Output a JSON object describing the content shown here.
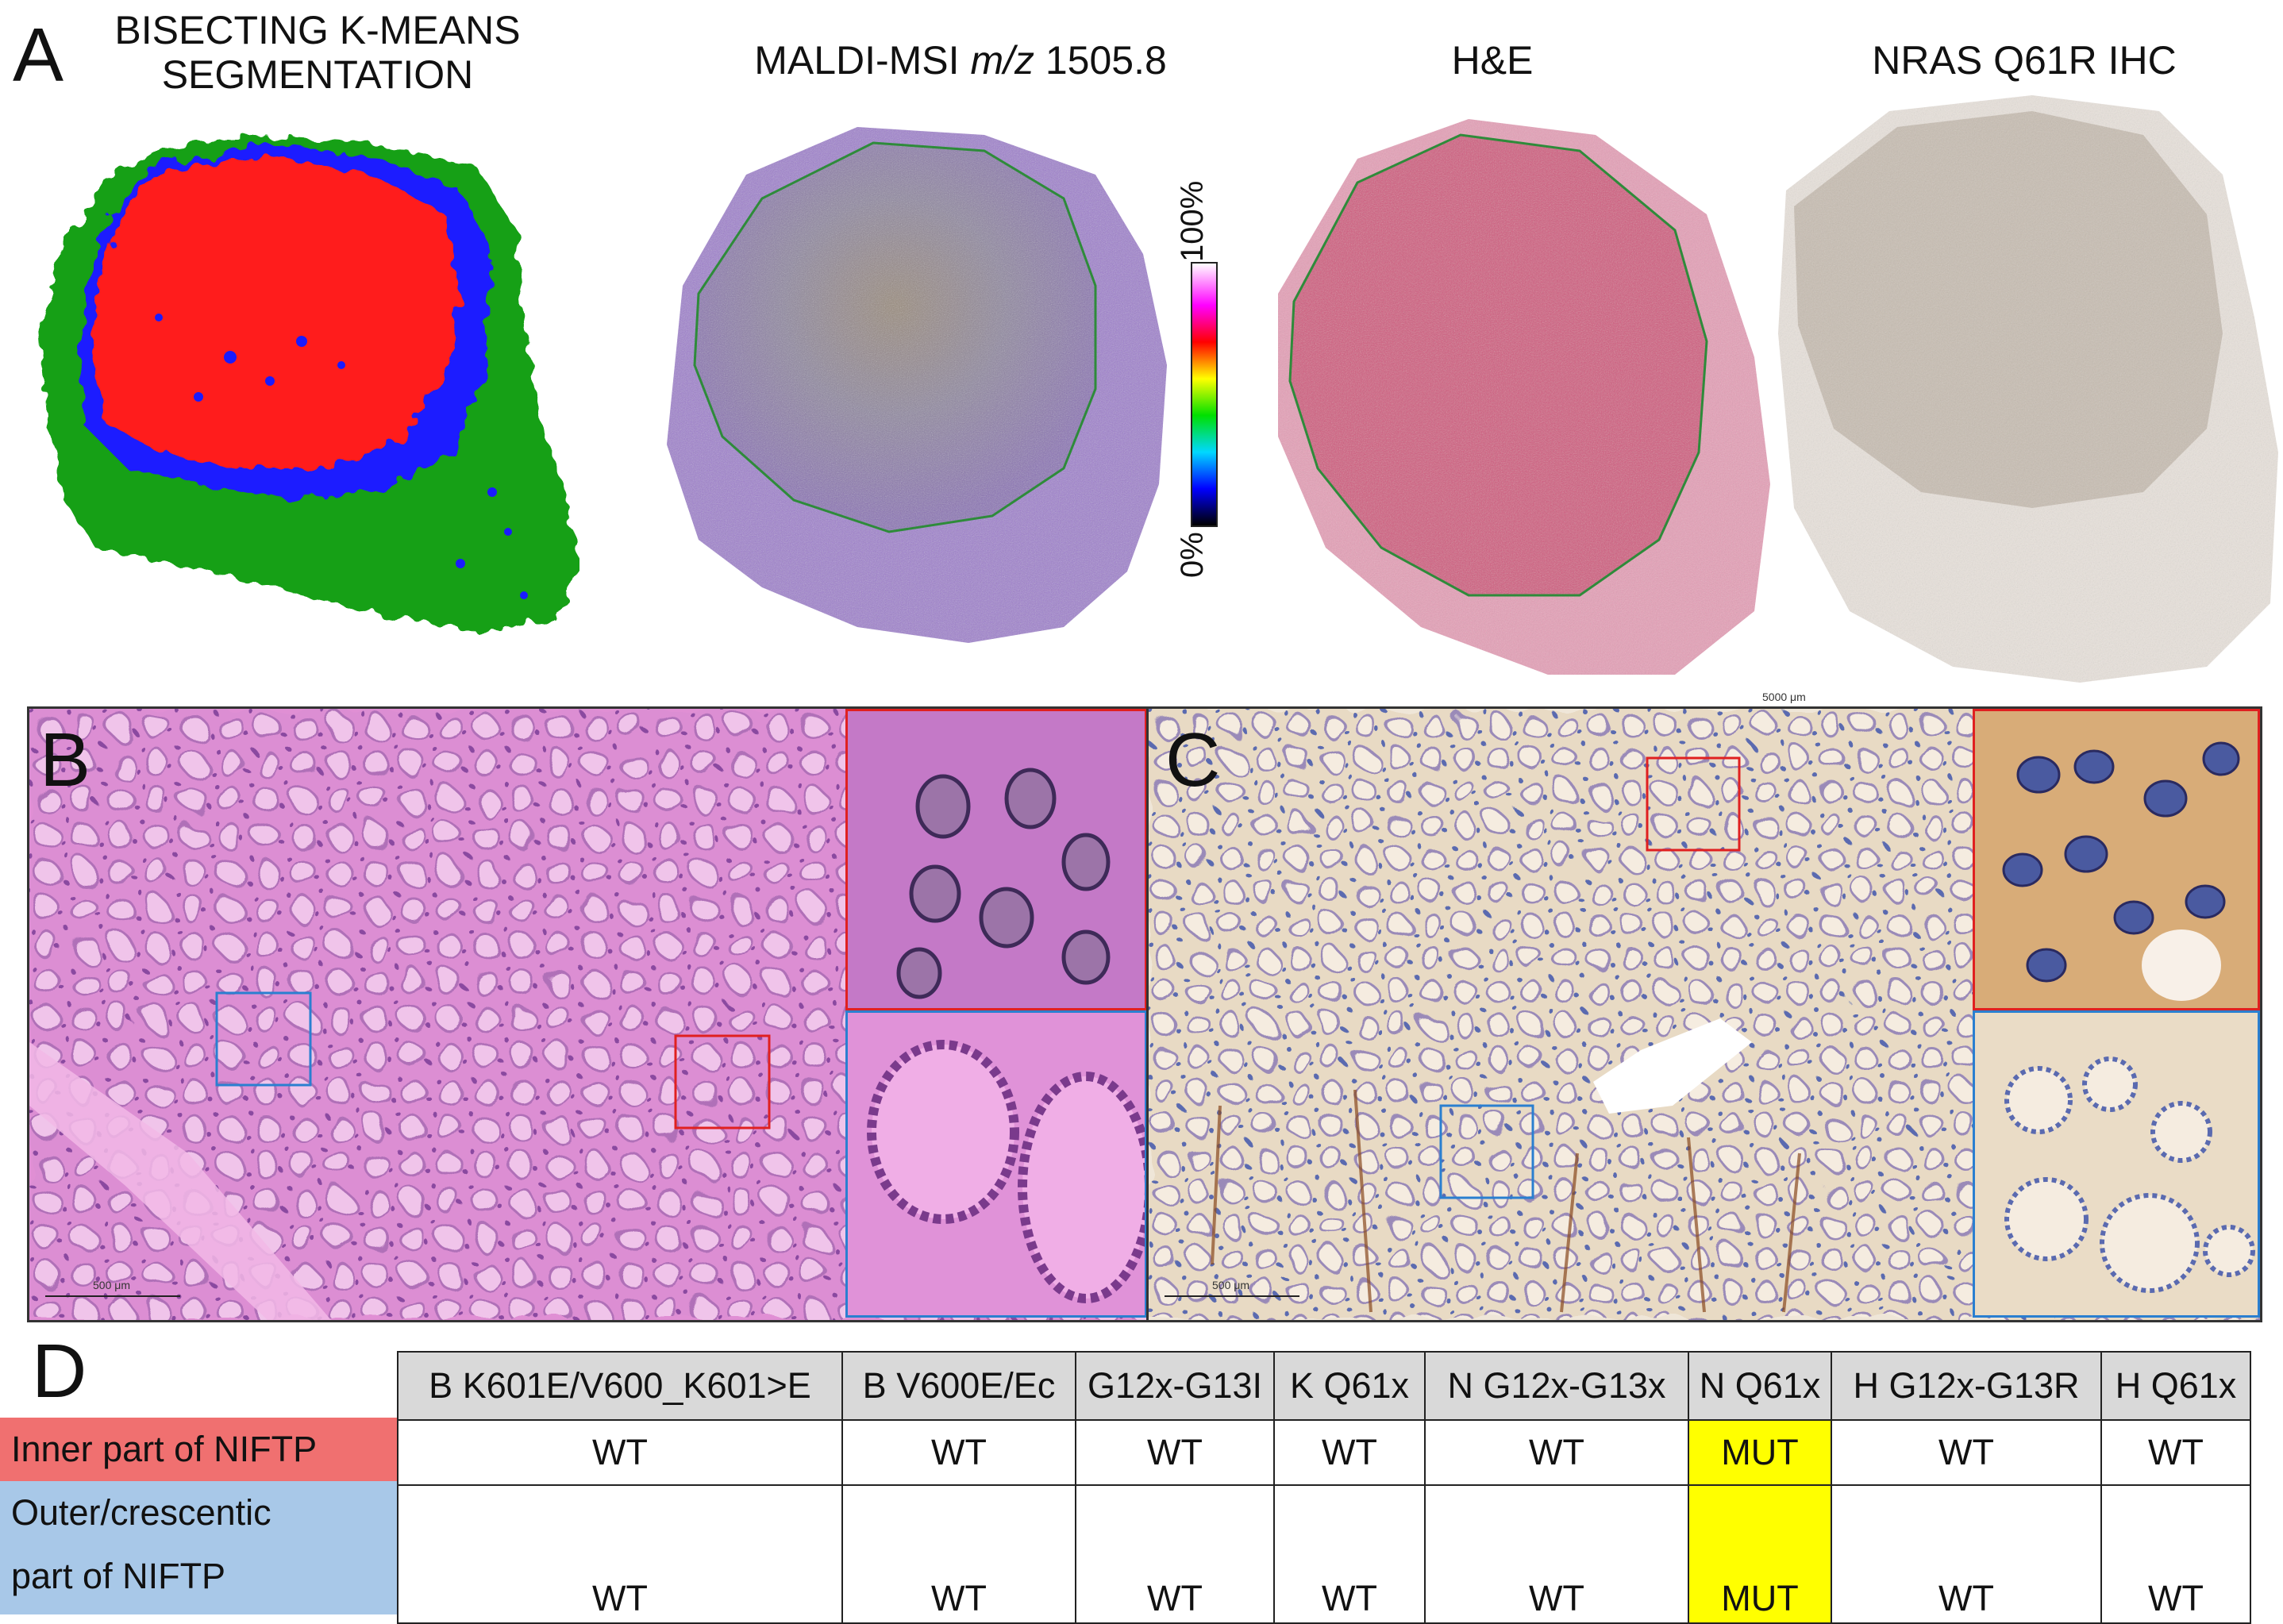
{
  "panels": {
    "A": {
      "letter": "A",
      "titles": {
        "segmentation": "BISECTING K-MEANS\nSEGMENTATION",
        "maldi_prefix": "MALDI-MSI ",
        "maldi_italic": "m/z",
        "maldi_suffix": " 1505.8",
        "he": "H&E",
        "ihc": "NRAS Q61R IHC"
      },
      "colorbar": {
        "max_label": "100%",
        "min_label": "0%"
      },
      "scale_label": "5000 μm",
      "colors": {
        "segment_red": "#ff1a1a",
        "segment_blue": "#1a1aff",
        "segment_green": "#14a014",
        "roi_outline": "#2e8b3a"
      }
    },
    "B": {
      "letter": "B",
      "scale_label": "500 μm"
    },
    "C": {
      "letter": "C",
      "scale_label": "500 μm"
    },
    "D": {
      "letter": "D"
    }
  },
  "table": {
    "headers": [
      "B K601E/V600_K601>E",
      "B V600E/Ec",
      "G12x-G13I",
      "K Q61x",
      "N G12x-G13x",
      "N Q61x",
      "H G12x-G13R",
      "H Q61x"
    ],
    "rows": [
      {
        "label": "Inner part of NIFTP",
        "label_color": "#f07070",
        "values": [
          "WT",
          "WT",
          "WT",
          "WT",
          "WT",
          "MUT",
          "WT",
          "WT"
        ]
      },
      {
        "label_line1": "Outer/crescentic",
        "label_line2": "part of NIFTP",
        "label_color": "#a8c8e8",
        "values": [
          "WT",
          "WT",
          "WT",
          "WT",
          "WT",
          "MUT",
          "WT",
          "WT"
        ]
      }
    ],
    "mut_color": "#ffff00"
  }
}
